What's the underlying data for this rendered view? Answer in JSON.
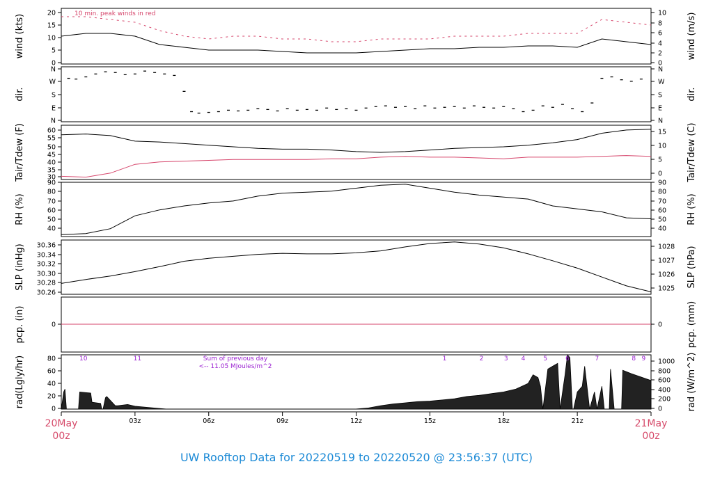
{
  "page_title": "UW Rooftop Data for 20220519  to  20220520 @ 23:56:37  (UTC)",
  "colors": {
    "line": "#000000",
    "highlight": "#d6456b",
    "annotation": "#9a1fd1",
    "title": "#1c8ad6",
    "date_label": "#d64a6a"
  },
  "x_axis": {
    "ticks": [
      {
        "hour": 0,
        "label": "20May"
      },
      {
        "hour": 3,
        "label": "03z"
      },
      {
        "hour": 6,
        "label": "06z"
      },
      {
        "hour": 9,
        "label": "09z"
      },
      {
        "hour": 12,
        "label": "12z"
      },
      {
        "hour": 15,
        "label": "15z"
      },
      {
        "hour": 18,
        "label": "18z"
      },
      {
        "hour": 21,
        "label": "21z"
      },
      {
        "hour": 24,
        "label": "21May"
      }
    ],
    "start_sublabel": "00z",
    "end_sublabel": "00z",
    "range_hours": [
      0,
      24
    ]
  },
  "chart_data": [
    {
      "type": "line",
      "left_label": "wind (kts)",
      "right_label": "wind (m/s)",
      "annotation": "10 min. peak winds in red",
      "ylim": [
        0,
        20
      ],
      "left_ticks": [
        0,
        5,
        10,
        15,
        20
      ],
      "right_ticks": [
        0,
        2,
        4,
        6,
        8,
        10
      ],
      "series": [
        {
          "x": [
            0,
            1,
            2,
            3,
            4,
            5,
            6,
            7,
            8,
            9,
            10,
            11,
            12,
            13,
            14,
            15,
            16,
            17,
            18,
            19,
            20,
            21,
            22,
            23,
            24
          ],
          "values": [
            10,
            11,
            11,
            10,
            7,
            6,
            5,
            5,
            5,
            4.5,
            4,
            4,
            4,
            4.5,
            5,
            5.5,
            5.5,
            6,
            6,
            6.5,
            6.5,
            6,
            9,
            8,
            7
          ]
        },
        {
          "name": "10 min. peak winds",
          "x": [
            0,
            1,
            2,
            3,
            4,
            5,
            6,
            7,
            8,
            9,
            10,
            11,
            12,
            13,
            14,
            15,
            16,
            17,
            18,
            19,
            20,
            21,
            22,
            23,
            24
          ],
          "values": [
            17,
            17,
            16,
            15,
            12,
            10,
            9,
            10,
            10,
            9,
            9,
            8,
            8,
            9,
            9,
            9,
            10,
            10,
            10,
            11,
            11,
            11,
            16,
            15,
            14
          ]
        }
      ]
    },
    {
      "type": "scatter",
      "left_label": "dir.",
      "right_label": "dir.",
      "left_ticks": [
        "N",
        "W",
        "S",
        "E",
        "N"
      ],
      "right_ticks": [
        "N",
        "W",
        "S",
        "E",
        "N"
      ],
      "ylim": [
        0,
        360
      ],
      "x": [
        0.3,
        0.6,
        1.0,
        1.4,
        1.8,
        2.2,
        2.6,
        3.0,
        3.4,
        3.8,
        4.2,
        4.6,
        5.0,
        5.3,
        5.6,
        6.0,
        6.4,
        6.8,
        7.2,
        7.6,
        8.0,
        8.4,
        8.8,
        9.2,
        9.6,
        10.0,
        10.4,
        10.8,
        11.2,
        11.6,
        12.0,
        12.4,
        12.8,
        13.2,
        13.6,
        14.0,
        14.4,
        14.8,
        15.2,
        15.6,
        16.0,
        16.4,
        16.8,
        17.2,
        17.6,
        18.0,
        18.4,
        18.8,
        19.2,
        19.6,
        20.0,
        20.4,
        20.8,
        21.2,
        21.6,
        22.0,
        22.4,
        22.8,
        23.2,
        23.6
      ],
      "values": [
        290,
        285,
        300,
        320,
        335,
        330,
        315,
        320,
        340,
        330,
        320,
        310,
        200,
        60,
        50,
        55,
        60,
        70,
        65,
        70,
        80,
        75,
        65,
        80,
        70,
        75,
        70,
        85,
        75,
        80,
        70,
        85,
        95,
        100,
        90,
        95,
        80,
        100,
        85,
        90,
        95,
        85,
        100,
        90,
        85,
        95,
        80,
        60,
        70,
        100,
        90,
        110,
        80,
        60,
        120,
        290,
        300,
        280,
        270,
        285
      ]
    },
    {
      "type": "line",
      "left_label": "Tair/Tdew (F)",
      "right_label": "Tair/Tdew (C)",
      "ylim": [
        29,
        63
      ],
      "left_ticks": [
        30,
        35,
        40,
        45,
        50,
        55,
        60
      ],
      "right_ticks": [
        0,
        5,
        10,
        15
      ],
      "series": [
        {
          "x": [
            0,
            1,
            2,
            3,
            4,
            5,
            6,
            7,
            8,
            9,
            10,
            11,
            12,
            13,
            14,
            15,
            16,
            17,
            18,
            19,
            20,
            21,
            22,
            23,
            24
          ],
          "values": [
            57,
            57.5,
            56.5,
            53,
            52.5,
            51.5,
            50.5,
            49.5,
            48.5,
            48,
            48,
            47.5,
            46.5,
            46,
            46.5,
            47.5,
            48.5,
            49,
            49.5,
            50.5,
            52,
            54,
            58,
            60,
            60.5
          ]
        },
        {
          "name": "Tdew",
          "x": [
            0,
            1,
            2,
            3,
            4,
            5,
            6,
            7,
            8,
            9,
            10,
            11,
            12,
            13,
            14,
            15,
            16,
            17,
            18,
            19,
            20,
            21,
            22,
            23,
            24
          ],
          "values": [
            31,
            30.5,
            33,
            38.5,
            40,
            40.5,
            41,
            41.5,
            41.5,
            41.5,
            41.5,
            42,
            42,
            43,
            43.5,
            43,
            43,
            42.5,
            42,
            43,
            43,
            43,
            43.5,
            44,
            43.5
          ]
        }
      ]
    },
    {
      "type": "line",
      "left_label": "RH (%)",
      "right_label": "RH (%)",
      "ylim": [
        35,
        90
      ],
      "left_ticks": [
        40,
        50,
        60,
        70,
        80,
        90
      ],
      "right_ticks": [
        40,
        50,
        60,
        70,
        80,
        90
      ],
      "series": [
        {
          "x": [
            0,
            1,
            2,
            3,
            4,
            5,
            6,
            7,
            8,
            9,
            10,
            11,
            12,
            13,
            14,
            15,
            16,
            17,
            18,
            19,
            20,
            21,
            22,
            23,
            24
          ],
          "values": [
            37,
            38,
            43,
            56,
            62,
            66,
            69,
            71,
            76,
            79,
            80,
            81,
            84,
            87,
            88,
            84,
            80,
            77,
            75,
            73,
            66,
            63,
            60,
            54,
            53
          ]
        }
      ]
    },
    {
      "type": "line",
      "left_label": "SLP (inHg)",
      "right_label": "SLP (hPa)",
      "ylim": [
        30.26,
        30.37
      ],
      "left_ticks": [
        "30.26",
        "30.28",
        "30.30",
        "30.32",
        "30.34",
        "30.36"
      ],
      "right_ticks": [
        "1025",
        "1026",
        "1027",
        "1028"
      ],
      "series": [
        {
          "x": [
            0,
            1,
            2,
            3,
            4,
            5,
            6,
            7,
            8,
            9,
            10,
            11,
            12,
            13,
            14,
            15,
            16,
            17,
            18,
            19,
            20,
            21,
            22,
            23,
            24
          ],
          "values": [
            30.282,
            30.29,
            30.297,
            30.306,
            30.316,
            30.327,
            30.333,
            30.337,
            30.341,
            30.343,
            30.342,
            30.342,
            30.344,
            30.348,
            30.356,
            30.363,
            30.366,
            30.362,
            30.354,
            30.342,
            30.328,
            30.313,
            30.295,
            30.277,
            30.265
          ]
        }
      ]
    },
    {
      "type": "line",
      "left_label": "pcp. (in)",
      "right_label": "pcp. (mm)",
      "left_ticks": [
        0
      ],
      "right_ticks": [
        0
      ],
      "series": [
        {
          "x": [
            0,
            24
          ],
          "values": [
            0,
            0
          ]
        }
      ]
    },
    {
      "type": "area",
      "left_label": "rad(Lgly/hr)",
      "right_label": "rad (W/m^2)",
      "ylim": [
        0,
        95
      ],
      "left_ticks": [
        0,
        20,
        40,
        60,
        80
      ],
      "right_ticks": [
        0,
        200,
        400,
        600,
        800,
        1000
      ],
      "annotation_lines": [
        "Sum of previous day",
        "<-- 11.05 MJoules/m^2"
      ],
      "uv_labels": [
        {
          "hour": 0.9,
          "label": "10"
        },
        {
          "hour": 3.1,
          "label": "11"
        },
        {
          "hour": 15.6,
          "label": "1"
        },
        {
          "hour": 17.1,
          "label": "2"
        },
        {
          "hour": 18.1,
          "label": "3"
        },
        {
          "hour": 18.8,
          "label": "4"
        },
        {
          "hour": 19.7,
          "label": "5"
        },
        {
          "hour": 20.6,
          "label": "6"
        },
        {
          "hour": 21.8,
          "label": "7"
        },
        {
          "hour": 23.3,
          "label": "8"
        },
        {
          "hour": 23.7,
          "label": "9"
        }
      ],
      "series": [
        {
          "x": [
            0.0,
            0.1,
            0.15,
            0.2,
            0.21,
            0.7,
            0.75,
            1.2,
            1.25,
            1.6,
            1.65,
            1.7,
            1.8,
            1.85,
            2.2,
            2.3,
            2.7,
            3.0,
            3.5,
            4.0,
            4.3,
            11.95,
            12.5,
            13.0,
            13.5,
            14.0,
            14.5,
            15.0,
            15.5,
            16.0,
            16.5,
            17.0,
            17.5,
            18.0,
            18.5,
            19.0,
            19.2,
            19.4,
            19.5,
            19.6,
            19.8,
            20.0,
            20.2,
            20.3,
            20.5,
            20.6,
            20.7,
            20.8,
            20.85,
            21.0,
            21.2,
            21.3,
            21.5,
            21.7,
            21.8,
            22.0,
            22.1,
            22.3,
            22.35,
            22.5,
            22.8,
            22.85,
            23.2,
            23.6,
            24.0
          ],
          "values": [
            0,
            30,
            35,
            5,
            0,
            0,
            30,
            28,
            12,
            10,
            0,
            0,
            20,
            22,
            6,
            6,
            8,
            5,
            3,
            1,
            0,
            0,
            2,
            6,
            9,
            11,
            13,
            14,
            16,
            18,
            22,
            24,
            27,
            30,
            35,
            45,
            60,
            55,
            40,
            0,
            70,
            75,
            80,
            0,
            60,
            95,
            90,
            0,
            0,
            30,
            40,
            75,
            0,
            30,
            0,
            40,
            0,
            0,
            70,
            0,
            0,
            68,
            62,
            56,
            50
          ]
        }
      ]
    }
  ]
}
